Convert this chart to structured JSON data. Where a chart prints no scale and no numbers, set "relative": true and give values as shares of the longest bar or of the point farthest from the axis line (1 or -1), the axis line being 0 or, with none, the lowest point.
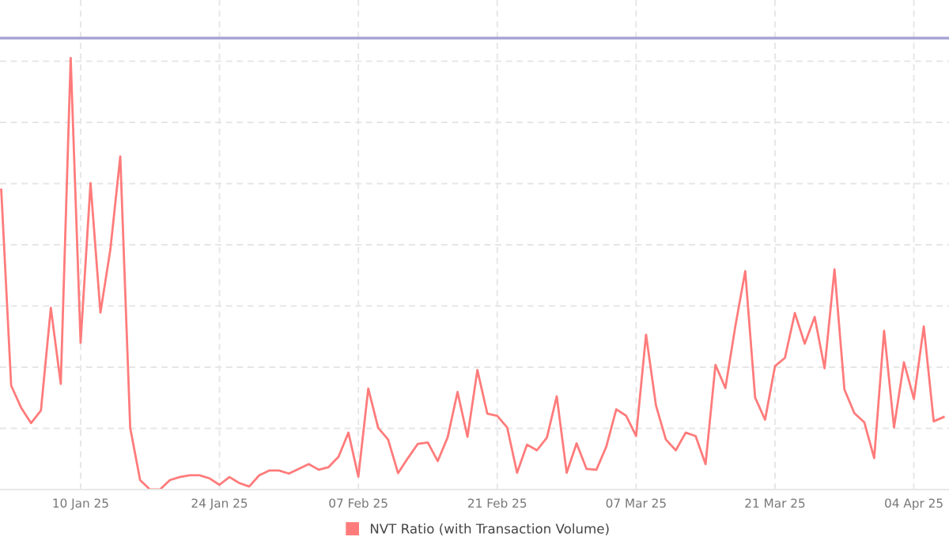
{
  "chart_data": {
    "type": "line",
    "relative": true,
    "x": [
      "2025-01-02",
      "2025-01-03",
      "2025-01-04",
      "2025-01-05",
      "2025-01-06",
      "2025-01-07",
      "2025-01-08",
      "2025-01-09",
      "2025-01-10",
      "2025-01-11",
      "2025-01-12",
      "2025-01-13",
      "2025-01-14",
      "2025-01-15",
      "2025-01-16",
      "2025-01-17",
      "2025-01-18",
      "2025-01-19",
      "2025-01-20",
      "2025-01-21",
      "2025-01-22",
      "2025-01-23",
      "2025-01-24",
      "2025-01-25",
      "2025-01-26",
      "2025-01-27",
      "2025-01-28",
      "2025-01-29",
      "2025-01-30",
      "2025-01-31",
      "2025-02-01",
      "2025-02-02",
      "2025-02-03",
      "2025-02-04",
      "2025-02-05",
      "2025-02-06",
      "2025-02-07",
      "2025-02-08",
      "2025-02-09",
      "2025-02-10",
      "2025-02-11",
      "2025-02-12",
      "2025-02-13",
      "2025-02-14",
      "2025-02-15",
      "2025-02-16",
      "2025-02-17",
      "2025-02-18",
      "2025-02-19",
      "2025-02-20",
      "2025-02-21",
      "2025-02-22",
      "2025-02-23",
      "2025-02-24",
      "2025-02-25",
      "2025-02-26",
      "2025-02-27",
      "2025-02-28",
      "2025-03-01",
      "2025-03-02",
      "2025-03-03",
      "2025-03-04",
      "2025-03-05",
      "2025-03-06",
      "2025-03-07",
      "2025-03-08",
      "2025-03-09",
      "2025-03-10",
      "2025-03-11",
      "2025-03-12",
      "2025-03-13",
      "2025-03-14",
      "2025-03-15",
      "2025-03-16",
      "2025-03-17",
      "2025-03-18",
      "2025-03-19",
      "2025-03-20",
      "2025-03-21",
      "2025-03-22",
      "2025-03-23",
      "2025-03-24",
      "2025-03-25",
      "2025-03-26",
      "2025-03-27",
      "2025-03-28",
      "2025-03-29",
      "2025-03-30",
      "2025-03-31",
      "2025-04-01",
      "2025-04-02",
      "2025-04-03",
      "2025-04-04",
      "2025-04-05",
      "2025-04-06",
      "2025-04-07"
    ],
    "series": [
      {
        "name": "NVT Ratio (with Transaction Volume)",
        "color": "#ff7b7b",
        "values": [
          0.695,
          0.241,
          0.19,
          0.154,
          0.183,
          0.421,
          0.245,
          1,
          0.34,
          0.71,
          0.41,
          0.556,
          0.772,
          0.143,
          0.022,
          0,
          0,
          0.022,
          0.029,
          0.033,
          0.033,
          0.026,
          0.011,
          0.029,
          0.015,
          0.007,
          0.033,
          0.044,
          0.044,
          0.037,
          0.048,
          0.059,
          0.046,
          0.052,
          0.076,
          0.132,
          0.03,
          0.234,
          0.143,
          0.116,
          0.038,
          0.073,
          0.106,
          0.109,
          0.066,
          0.121,
          0.226,
          0.122,
          0.277,
          0.176,
          0.171,
          0.144,
          0.039,
          0.104,
          0.091,
          0.12,
          0.216,
          0.039,
          0.107,
          0.048,
          0.046,
          0.1,
          0.186,
          0.171,
          0.124,
          0.359,
          0.195,
          0.116,
          0.091,
          0.132,
          0.124,
          0.059,
          0.289,
          0.235,
          0.378,
          0.506,
          0.213,
          0.162,
          0.286,
          0.305,
          0.409,
          0.338,
          0.4,
          0.281,
          0.51,
          0.232,
          0.177,
          0.156,
          0.073,
          0.368,
          0.144,
          0.295,
          0.21,
          0.378,
          0.158,
          0.168
        ]
      }
    ],
    "xlim": [
      "2025-01-01T21:00",
      "2025-04-07T13:00"
    ],
    "xticks": [
      {
        "value": "2025-01-10",
        "label": "10 Jan 25"
      },
      {
        "value": "2025-01-24",
        "label": "24 Jan 25"
      },
      {
        "value": "2025-02-07",
        "label": "07 Feb 25"
      },
      {
        "value": "2025-02-21",
        "label": "21 Feb 25"
      },
      {
        "value": "2025-03-07",
        "label": "07 Mar 25"
      },
      {
        "value": "2025-03-21",
        "label": "21 Mar 25"
      },
      {
        "value": "2025-04-04",
        "label": "04 Apr 25"
      }
    ],
    "ref_lines": [
      {
        "axis": "y",
        "value": 1.046,
        "color": "#a7a5d6"
      }
    ],
    "grid": true,
    "legend": "bottom",
    "tick_labels": "x",
    "marker": "none",
    "line_style": "solid"
  }
}
